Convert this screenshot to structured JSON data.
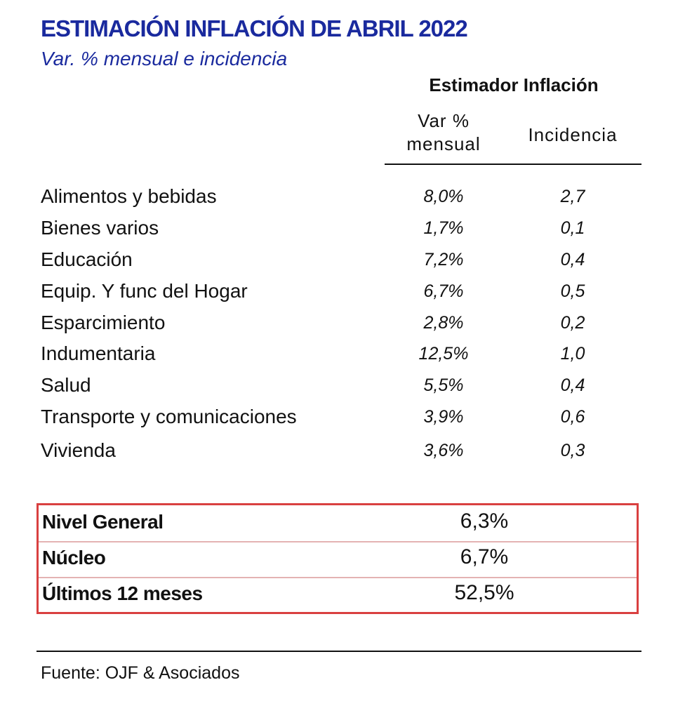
{
  "header": {
    "title": "ESTIMACIÓN INFLACIÓN DE ABRIL 2022",
    "subtitle": "Var. % mensual e incidencia",
    "title_color": "#1a2a9e",
    "subtitle_color": "#1a2a9e"
  },
  "table": {
    "group_header": "Estimador Inflación",
    "columns": {
      "var_line1": "Var %",
      "var_line2": "mensual",
      "incidencia": "Incidencia"
    },
    "rows": [
      {
        "label": "Alimentos y bebidas",
        "var": "8,0%",
        "inc": "2,7"
      },
      {
        "label": "Bienes varios",
        "var": "1,7%",
        "inc": "0,1"
      },
      {
        "label": "Educación",
        "var": "7,2%",
        "inc": "0,4"
      },
      {
        "label": "Equip. Y func del Hogar",
        "var": "6,7%",
        "inc": "0,5"
      },
      {
        "label": "Esparcimiento",
        "var": "2,8%",
        "inc": "0,2"
      },
      {
        "label": "Indumentaria",
        "var": "12,5%",
        "inc": "1,0"
      },
      {
        "label": "Salud",
        "var": "5,5%",
        "inc": "0,4"
      },
      {
        "label": "Transporte y comunicaciones",
        "var": "3,9%",
        "inc": "0,6"
      },
      {
        "label": "Vivienda",
        "var": "3,6%",
        "inc": "0,3"
      }
    ]
  },
  "summary": {
    "border_color": "#d94040",
    "rows": [
      {
        "label": "Nivel General",
        "value": "6,3%"
      },
      {
        "label": "Núcleo",
        "value": "6,7%"
      },
      {
        "label": "Últimos 12 meses",
        "value": "52,5%"
      }
    ]
  },
  "footer": {
    "source": "Fuente: OJF & Asociados"
  }
}
